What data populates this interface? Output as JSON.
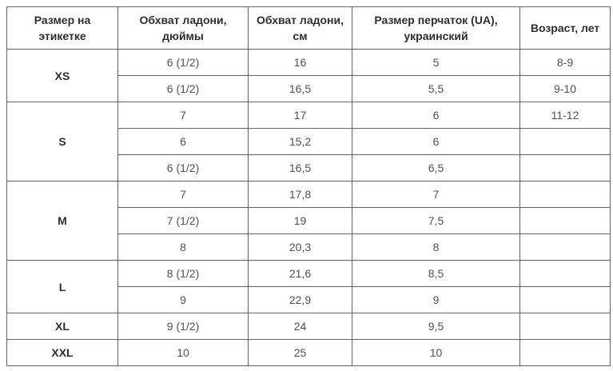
{
  "chart_data": {
    "type": "table",
    "title": "",
    "columns": [
      "Размер на этикетке",
      "Обхват ладони, дюймы",
      "Обхват ладони, см",
      "Размер перчаток (UA), украинский",
      "Возраст, лет"
    ],
    "rows": [
      [
        "XS",
        "6 (1/2)",
        "16",
        "5",
        "8-9"
      ],
      [
        "XS",
        "6 (1/2)",
        "16,5",
        "5,5",
        "9-10"
      ],
      [
        "S",
        "7",
        "17",
        "6",
        "11-12"
      ],
      [
        "S",
        "6",
        "15,2",
        "6",
        ""
      ],
      [
        "S",
        "6 (1/2)",
        "16,5",
        "6,5",
        ""
      ],
      [
        "M",
        "7",
        "17,8",
        "7",
        ""
      ],
      [
        "M",
        "7 (1/2)",
        "19",
        "7,5",
        ""
      ],
      [
        "M",
        "8",
        "20,3",
        "8",
        ""
      ],
      [
        "L",
        "8 (1/2)",
        "21,6",
        "8,5",
        ""
      ],
      [
        "L",
        "9",
        "22,9",
        "9",
        ""
      ],
      [
        "XL",
        "9 (1/2)",
        "24",
        "9,5",
        ""
      ],
      [
        "XXL",
        "10",
        "25",
        "10",
        ""
      ]
    ],
    "layout_hints": {
      "first_column_merged_by_size": true,
      "grid": true,
      "all_cells_centered": true
    }
  },
  "table": {
    "columns": [
      "Размер на этикетке",
      "Обхват ладони, дюймы",
      "Обхват ладони, см",
      "Размер перчаток (UA), украинский",
      "Возраст, лет"
    ],
    "sections": [
      {
        "label": "XS",
        "rows": [
          [
            "6 (1/2)",
            "16",
            "5",
            "8-9"
          ],
          [
            "6 (1/2)",
            "16,5",
            "5,5",
            "9-10"
          ]
        ]
      },
      {
        "label": "S",
        "rows": [
          [
            "7",
            "17",
            "6",
            "11-12"
          ],
          [
            "6",
            "15,2",
            "6",
            ""
          ],
          [
            "6 (1/2)",
            "16,5",
            "6,5",
            ""
          ]
        ]
      },
      {
        "label": "M",
        "rows": [
          [
            "7",
            "17,8",
            "7",
            ""
          ],
          [
            "7 (1/2)",
            "19",
            "7,5",
            ""
          ],
          [
            "8",
            "20,3",
            "8",
            ""
          ]
        ]
      },
      {
        "label": "L",
        "rows": [
          [
            "8 (1/2)",
            "21,6",
            "8,5",
            ""
          ],
          [
            "9",
            "22,9",
            "9",
            ""
          ]
        ]
      },
      {
        "label": "XL",
        "rows": [
          [
            "9 (1/2)",
            "24",
            "9,5",
            ""
          ]
        ]
      },
      {
        "label": "XXL",
        "rows": [
          [
            "10",
            "25",
            "10",
            ""
          ]
        ]
      }
    ]
  },
  "colors": {
    "border": "#636363",
    "header_text": "#2e2e2e",
    "body_text": "#515151",
    "background": "#ffffff"
  }
}
